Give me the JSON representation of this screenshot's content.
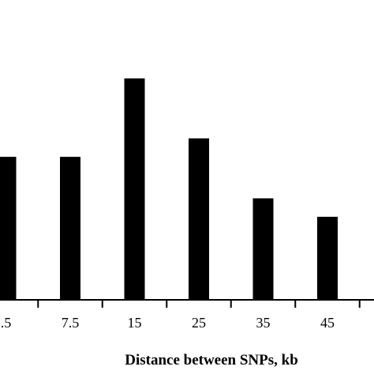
{
  "chart_data": {
    "type": "bar",
    "xlabel": "Distance between SNPs, kb",
    "ylabel": "",
    "title": "",
    "categories": [
      ".5",
      "7.5",
      "15",
      "25",
      "35",
      "45"
    ],
    "values": [
      3.1,
      3.1,
      4.8,
      3.5,
      2.2,
      1.8
    ],
    "ylim": [
      0,
      6.5
    ],
    "grid": false,
    "bar_color": "#000000",
    "axis_color": "#000000"
  }
}
